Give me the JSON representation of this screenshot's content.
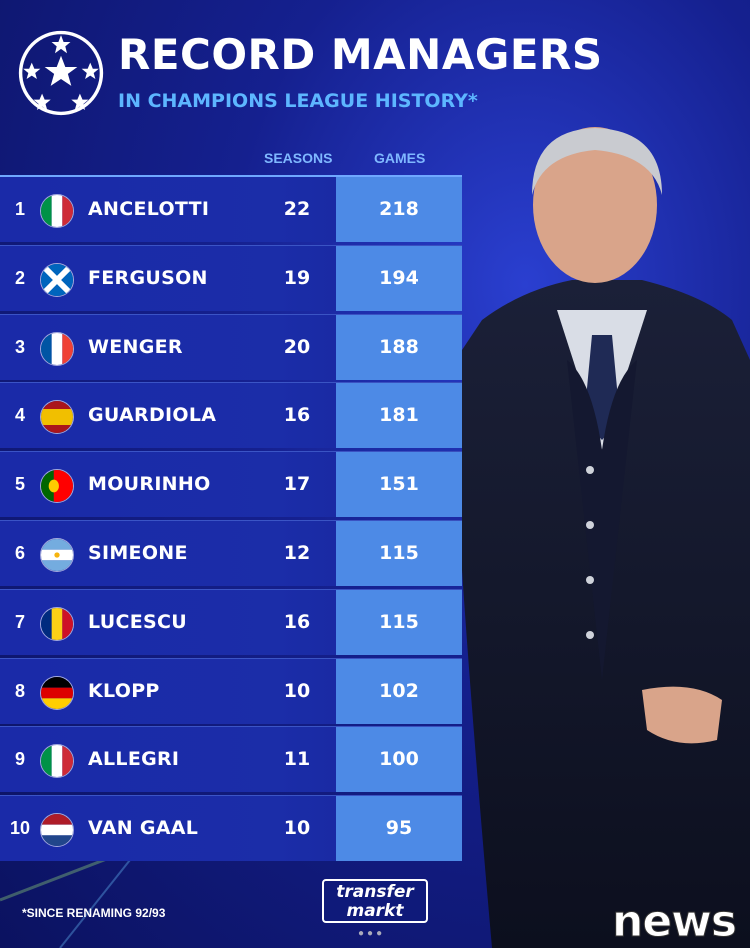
{
  "header": {
    "title": "RECORD MANAGERS",
    "subtitle": "IN CHAMPIONS LEAGUE HISTORY*"
  },
  "columns": {
    "seasons": "SEASONS",
    "games": "GAMES"
  },
  "rows": [
    {
      "rank": "1",
      "name": "ANCELOTTI",
      "seasons": "22",
      "games": "218",
      "flag": "italy"
    },
    {
      "rank": "2",
      "name": "FERGUSON",
      "seasons": "19",
      "games": "194",
      "flag": "scotland"
    },
    {
      "rank": "3",
      "name": "WENGER",
      "seasons": "20",
      "games": "188",
      "flag": "france"
    },
    {
      "rank": "4",
      "name": "GUARDIOLA",
      "seasons": "16",
      "games": "181",
      "flag": "spain"
    },
    {
      "rank": "5",
      "name": "MOURINHO",
      "seasons": "17",
      "games": "151",
      "flag": "portugal"
    },
    {
      "rank": "6",
      "name": "SIMEONE",
      "seasons": "12",
      "games": "115",
      "flag": "argentina"
    },
    {
      "rank": "7",
      "name": "LUCESCU",
      "seasons": "16",
      "games": "115",
      "flag": "romania"
    },
    {
      "rank": "8",
      "name": "KLOPP",
      "seasons": "10",
      "games": "102",
      "flag": "germany"
    },
    {
      "rank": "9",
      "name": "ALLEGRI",
      "seasons": "11",
      "games": "100",
      "flag": "italy"
    },
    {
      "rank": "10",
      "name": "VAN GAAL",
      "seasons": "10",
      "games": "95",
      "flag": "netherlands"
    }
  ],
  "footnote": "*SINCE RENAMING 92/93",
  "brand": {
    "line1": "transfer",
    "line2": "markt"
  },
  "watermark": "news",
  "colors": {
    "games_cell": "#4d8ae6",
    "accent": "#5db6ff",
    "background": "#15208f"
  }
}
